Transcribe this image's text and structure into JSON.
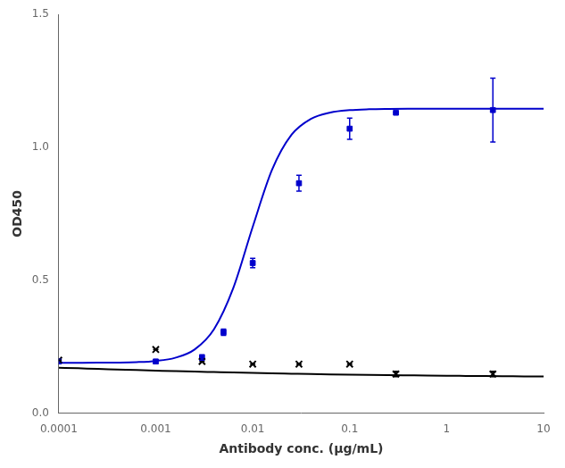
{
  "chart_data": {
    "type": "scatter",
    "xlabel": "Antibody conc. (μg/mL)",
    "ylabel": "OD450",
    "log": "x",
    "grid": false,
    "xlim": [
      0.0001,
      10
    ],
    "xticks": [
      0.0001,
      0.001,
      0.01,
      0.1,
      1,
      10
    ],
    "ylim": [
      0.0,
      1.5
    ],
    "yticks": [
      {
        "value": 0.0,
        "label": "0.0"
      },
      {
        "value": 0.5,
        "label": "0.5"
      },
      {
        "value": 1.0,
        "label": "1.0"
      },
      {
        "value": 1.5,
        "label": "1.5"
      }
    ],
    "series": [
      {
        "type": "line",
        "color": "#0000cc",
        "marker": "none",
        "line_style": "solid",
        "x": [
          0.0001,
          0.000158489,
          0.000251189,
          0.000398107,
          0.000630957,
          0.001,
          0.00158489,
          0.00251189,
          0.00398107,
          0.00630957,
          0.01,
          0.0158489,
          0.0251189,
          0.0398107,
          0.0630957,
          0.1,
          0.158489,
          0.251189,
          0.398107,
          0.630957,
          1,
          1.58489,
          2.51189,
          3.98107,
          6.30957,
          10
        ],
        "values": [
          0.19,
          0.1901,
          0.1903,
          0.1909,
          0.1925,
          0.1969,
          0.2087,
          0.2399,
          0.3158,
          0.4715,
          0.7011,
          0.916,
          1.0469,
          1.1069,
          1.1308,
          1.1398,
          1.1431,
          1.1443,
          1.1448,
          1.1449,
          1.145,
          1.145,
          1.145,
          1.145,
          1.145,
          1.145
        ]
      },
      {
        "type": "line",
        "color": "#000000",
        "marker": "none",
        "line_style": "solid",
        "x": [
          0.0001,
          0.000158489,
          0.000251189,
          0.000398107,
          0.000630957,
          0.001,
          0.00158489,
          0.00251189,
          0.00398107,
          0.00630957,
          0.01,
          0.0158489,
          0.0251189,
          0.0398107,
          0.0630957,
          0.1,
          0.158489,
          0.251189,
          0.398107,
          0.630957,
          1,
          1.58489,
          2.51189,
          3.98107,
          6.30957,
          10
        ],
        "values": [
          0.1715,
          0.1693,
          0.167,
          0.1649,
          0.1627,
          0.1607,
          0.1587,
          0.1568,
          0.1551,
          0.1534,
          0.1518,
          0.1503,
          0.149,
          0.1477,
          0.1465,
          0.1454,
          0.1444,
          0.1435,
          0.1427,
          0.1419,
          0.1412,
          0.1406,
          0.14,
          0.1395,
          0.139,
          0.1386
        ]
      },
      {
        "type": "scatter",
        "color": "#0000cc",
        "marker": "square",
        "line_style": "none",
        "x": [
          0.0001,
          0.001,
          0.003,
          0.005,
          0.01,
          0.03,
          0.1,
          0.3,
          3.0
        ],
        "values": [
          0.195,
          0.195,
          0.21,
          0.305,
          0.565,
          0.865,
          1.07,
          1.13,
          1.14
        ],
        "yerr": [
          0.008,
          0.007,
          0.01,
          0.012,
          0.018,
          0.03,
          0.04,
          0.0,
          0.12
        ]
      },
      {
        "type": "scatter",
        "color": "#000000",
        "marker": "x",
        "line_style": "none",
        "x": [
          0.0001,
          0.001,
          0.003,
          0.01,
          0.03,
          0.1,
          0.3,
          3.0
        ],
        "values": [
          0.2,
          0.24,
          0.195,
          0.185,
          0.185,
          0.185,
          0.148,
          0.148
        ],
        "yerr": [
          0.0,
          0.0,
          0.0,
          0.0,
          0.0,
          0.0,
          0.01,
          0.01
        ]
      }
    ]
  }
}
